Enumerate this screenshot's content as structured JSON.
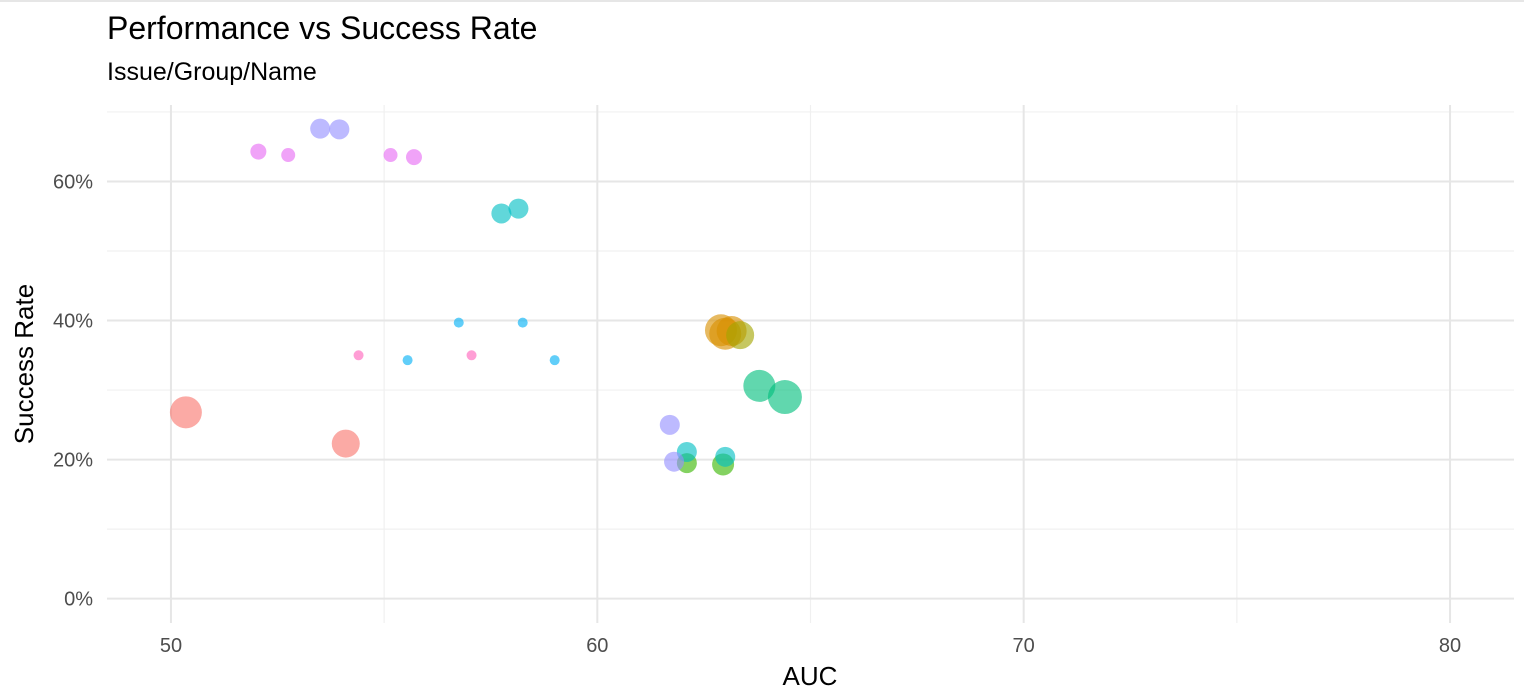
{
  "chart_data": {
    "type": "scatter",
    "title": "Performance vs Success Rate",
    "subtitle": "Issue/Group/Name",
    "xlabel": "AUC",
    "ylabel": "Success Rate",
    "xlim": [
      48.5,
      81.5
    ],
    "ylim": [
      -0.035,
      0.71
    ],
    "x_ticks": [
      50,
      60,
      70,
      80
    ],
    "x_tick_labels": [
      "50",
      "60",
      "70",
      "80"
    ],
    "y_ticks": [
      0,
      0.2,
      0.4,
      0.6
    ],
    "y_tick_labels": [
      "0%",
      "20%",
      "40%",
      "60%"
    ],
    "grid": true,
    "legend": "none",
    "points": [
      {
        "x": 50.35,
        "y": 0.268,
        "size": 16,
        "color": "#F8766D"
      },
      {
        "x": 54.1,
        "y": 0.223,
        "size": 14,
        "color": "#F8766D"
      },
      {
        "x": 63.0,
        "y": 0.381,
        "size": 16,
        "color": "#D89000"
      },
      {
        "x": 62.9,
        "y": 0.386,
        "size": 16,
        "color": "#D89000"
      },
      {
        "x": 63.15,
        "y": 0.385,
        "size": 15,
        "color": "#D89000"
      },
      {
        "x": 63.35,
        "y": 0.379,
        "size": 14,
        "color": "#A3A500"
      },
      {
        "x": 62.1,
        "y": 0.195,
        "size": 10,
        "color": "#39B600"
      },
      {
        "x": 62.95,
        "y": 0.193,
        "size": 11,
        "color": "#39B600"
      },
      {
        "x": 63.8,
        "y": 0.306,
        "size": 16,
        "color": "#00BF7D"
      },
      {
        "x": 64.4,
        "y": 0.29,
        "size": 17,
        "color": "#00BF7D"
      },
      {
        "x": 57.75,
        "y": 0.554,
        "size": 10,
        "color": "#00BFC4"
      },
      {
        "x": 58.15,
        "y": 0.561,
        "size": 10,
        "color": "#00BFC4"
      },
      {
        "x": 62.1,
        "y": 0.211,
        "size": 10,
        "color": "#00BFC4"
      },
      {
        "x": 63.0,
        "y": 0.204,
        "size": 10,
        "color": "#00BFC4"
      },
      {
        "x": 56.75,
        "y": 0.397,
        "size": 5,
        "color": "#00B0F6"
      },
      {
        "x": 58.25,
        "y": 0.397,
        "size": 5,
        "color": "#00B0F6"
      },
      {
        "x": 55.55,
        "y": 0.343,
        "size": 5,
        "color": "#00B0F6"
      },
      {
        "x": 59.0,
        "y": 0.343,
        "size": 5,
        "color": "#00B0F6"
      },
      {
        "x": 53.5,
        "y": 0.676,
        "size": 10,
        "color": "#9590FF"
      },
      {
        "x": 53.95,
        "y": 0.675,
        "size": 10,
        "color": "#9590FF"
      },
      {
        "x": 61.7,
        "y": 0.25,
        "size": 10,
        "color": "#9590FF"
      },
      {
        "x": 61.8,
        "y": 0.197,
        "size": 10,
        "color": "#9590FF"
      },
      {
        "x": 52.05,
        "y": 0.643,
        "size": 8,
        "color": "#E76BF3"
      },
      {
        "x": 52.75,
        "y": 0.638,
        "size": 7,
        "color": "#E76BF3"
      },
      {
        "x": 55.15,
        "y": 0.638,
        "size": 7,
        "color": "#E76BF3"
      },
      {
        "x": 55.7,
        "y": 0.635,
        "size": 8,
        "color": "#E76BF3"
      },
      {
        "x": 54.4,
        "y": 0.35,
        "size": 5,
        "color": "#FF62BC"
      },
      {
        "x": 57.05,
        "y": 0.35,
        "size": 5,
        "color": "#FF62BC"
      }
    ]
  }
}
